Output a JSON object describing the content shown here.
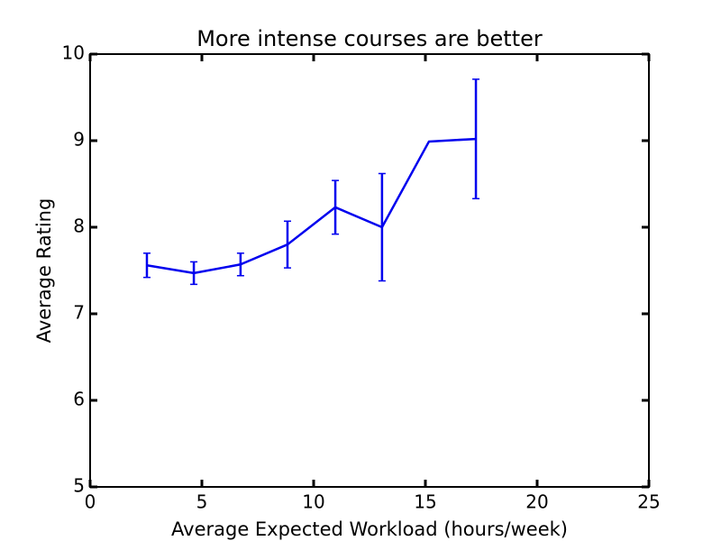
{
  "chart_data": {
    "type": "line",
    "title": "More intense courses are better",
    "x_label": "Average Expected Workload (hours/week)",
    "y_label": "Average Rating",
    "x": [
      2.54,
      4.64,
      6.73,
      8.83,
      10.97,
      13.06,
      15.16,
      17.26
    ],
    "series": [
      {
        "name": "Average Rating",
        "color": "#0000ee",
        "values": [
          7.56,
          7.47,
          7.57,
          7.8,
          8.23,
          8.0,
          8.99,
          9.02
        ],
        "errors": [
          0.14,
          0.13,
          0.13,
          0.27,
          0.31,
          0.62,
          null,
          0.69
        ]
      }
    ],
    "xlim": [
      0,
      25
    ],
    "xticks": [
      0,
      5,
      10,
      15,
      20,
      25
    ],
    "ylim": [
      5,
      10
    ],
    "yticks": [
      5,
      6,
      7,
      8,
      9,
      10
    ],
    "grid": false
  }
}
